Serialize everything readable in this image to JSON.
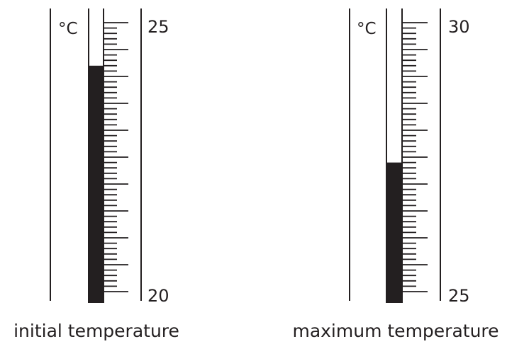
{
  "thermometers": [
    {
      "unit": "°C",
      "scale_min": 20,
      "scale_max": 25,
      "label_top": "25",
      "label_bottom": "20",
      "reading": 24.2,
      "caption": "initial temperature"
    },
    {
      "unit": "°C",
      "scale_min": 25,
      "scale_max": 30,
      "label_top": "30",
      "label_bottom": "25",
      "reading": 27.4,
      "caption": "maximum temperature"
    }
  ],
  "colors": {
    "ink": "#231f20",
    "background": "#ffffff"
  }
}
